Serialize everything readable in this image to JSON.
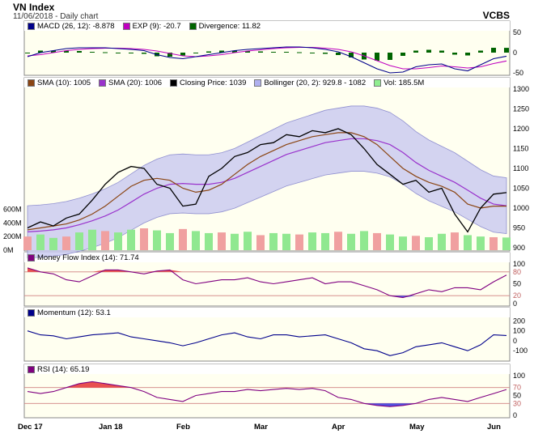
{
  "header": {
    "title": "VN Index",
    "subtitle": "11/06/2018 - Daily chart",
    "brand": "VCBS"
  },
  "x_axis_labels": [
    "Dec 17",
    "Jan 18",
    "Feb",
    "Mar",
    "Apr",
    "May",
    "Jun"
  ],
  "panels": {
    "macd": {
      "legend": [
        {
          "label": "MACD (26, 12): -8.878",
          "color": "#00008b"
        },
        {
          "label": "EXP (9): -20.7",
          "color": "#c000c0"
        },
        {
          "label": "Divergence: 11.82",
          "color": "#006400"
        }
      ],
      "ticks": [
        "50",
        "0",
        "-50"
      ]
    },
    "price": {
      "legend": [
        {
          "label": "SMA (10): 1005",
          "color": "#8b4513"
        },
        {
          "label": "SMA (20): 1006",
          "color": "#9932cc"
        },
        {
          "label": "Closing Price: 1039",
          "color": "#000000"
        },
        {
          "label": "Bollinger (20, 2): 929.8 - 1082",
          "color": "#b0b0f0"
        },
        {
          "label": "Vol: 185.5M",
          "color": "#90ee90"
        }
      ],
      "ticks": [
        "1300",
        "1250",
        "1200",
        "1150",
        "1100",
        "1050",
        "1000",
        "950",
        "900"
      ],
      "vol_ticks": [
        "600M",
        "400M",
        "200M",
        "0M"
      ]
    },
    "mfi": {
      "legend": [
        {
          "label": "Money Flow Index (14): 71.74",
          "color": "#800080"
        }
      ],
      "ticks": [
        "100",
        "80",
        "50",
        "20",
        "0"
      ]
    },
    "momentum": {
      "legend": [
        {
          "label": "Momentum (12): 53.1",
          "color": "#00008b"
        }
      ],
      "ticks": [
        "200",
        "100",
        "0",
        "-100"
      ]
    },
    "rsi": {
      "legend": [
        {
          "label": "RSI (14): 65.19",
          "color": "#800080"
        }
      ],
      "ticks": [
        "100",
        "70",
        "50",
        "30",
        "0"
      ]
    }
  },
  "chart_data": [
    {
      "type": "line",
      "title": "VN Index",
      "series": [
        {
          "name": "Closing Price",
          "values": [
            950,
            965,
            955,
            975,
            985,
            1020,
            1060,
            1090,
            1105,
            1100,
            1060,
            1050,
            1005,
            1010,
            1080,
            1100,
            1130,
            1140,
            1160,
            1165,
            1185,
            1180,
            1195,
            1190,
            1200,
            1185,
            1150,
            1110,
            1085,
            1060,
            1070,
            1040,
            1050,
            985,
            940,
            1000,
            1035,
            1039
          ]
        },
        {
          "name": "SMA (10)",
          "values": [
            945,
            950,
            955,
            960,
            970,
            985,
            1005,
            1030,
            1055,
            1070,
            1075,
            1070,
            1050,
            1040,
            1045,
            1060,
            1085,
            1110,
            1130,
            1145,
            1160,
            1170,
            1180,
            1185,
            1190,
            1190,
            1180,
            1160,
            1130,
            1100,
            1080,
            1065,
            1055,
            1040,
            1010,
            1000,
            1005,
            1005
          ]
        },
        {
          "name": "SMA (20)",
          "values": [
            940,
            942,
            945,
            950,
            958,
            968,
            980,
            995,
            1015,
            1035,
            1050,
            1060,
            1062,
            1060,
            1060,
            1065,
            1075,
            1090,
            1105,
            1120,
            1135,
            1145,
            1155,
            1165,
            1170,
            1175,
            1175,
            1170,
            1160,
            1140,
            1115,
            1095,
            1080,
            1065,
            1045,
            1025,
            1010,
            1006
          ]
        }
      ],
      "ylim": [
        900,
        1300
      ],
      "xlabel": "",
      "ylabel": ""
    },
    {
      "type": "bar",
      "title": "Vol",
      "values_m": [
        200,
        230,
        180,
        200,
        260,
        300,
        280,
        260,
        300,
        320,
        290,
        250,
        310,
        280,
        250,
        260,
        240,
        270,
        220,
        250,
        240,
        230,
        260,
        250,
        270,
        240,
        280,
        250,
        230,
        200,
        210,
        190,
        240,
        260,
        220,
        200,
        190,
        185.5
      ],
      "ylim": [
        0,
        700
      ]
    },
    {
      "type": "line",
      "title": "MACD",
      "series": [
        {
          "name": "MACD (26, 12)",
          "values": [
            -10,
            0,
            5,
            10,
            12,
            12,
            12,
            10,
            8,
            5,
            -5,
            -12,
            -15,
            -10,
            -5,
            0,
            5,
            8,
            10,
            12,
            14,
            14,
            12,
            8,
            2,
            -10,
            -25,
            -40,
            -50,
            -48,
            -35,
            -30,
            -28,
            -40,
            -45,
            -30,
            -15,
            -8.878
          ]
        },
        {
          "name": "EXP (9)",
          "values": [
            -8,
            -5,
            0,
            5,
            8,
            10,
            11,
            11,
            10,
            8,
            4,
            -2,
            -8,
            -10,
            -8,
            -5,
            0,
            4,
            7,
            10,
            12,
            13,
            13,
            11,
            8,
            2,
            -8,
            -20,
            -32,
            -40,
            -40,
            -37,
            -33,
            -35,
            -38,
            -35,
            -27,
            -20.7
          ]
        },
        {
          "name": "Divergence",
          "values": [
            -2,
            5,
            5,
            5,
            4,
            2,
            1,
            -1,
            -2,
            -3,
            -9,
            -10,
            -7,
            0,
            3,
            5,
            5,
            4,
            3,
            2,
            2,
            1,
            -1,
            -3,
            -6,
            -12,
            -17,
            -20,
            -18,
            -8,
            5,
            7,
            5,
            -5,
            -7,
            5,
            12,
            11.82
          ]
        }
      ],
      "ylim": [
        -50,
        50
      ]
    },
    {
      "type": "line",
      "title": "Money Flow Index",
      "series": [
        {
          "name": "Money Flow Index (14)",
          "values": [
            90,
            80,
            75,
            60,
            55,
            70,
            85,
            85,
            80,
            75,
            82,
            85,
            60,
            50,
            55,
            60,
            60,
            65,
            55,
            50,
            55,
            60,
            65,
            50,
            55,
            55,
            45,
            35,
            20,
            15,
            25,
            35,
            30,
            40,
            40,
            35,
            55,
            71.74
          ]
        }
      ],
      "ylim": [
        0,
        100
      ]
    },
    {
      "type": "line",
      "title": "Momentum",
      "series": [
        {
          "name": "Momentum (12)",
          "values": [
            100,
            60,
            50,
            20,
            40,
            60,
            70,
            80,
            40,
            20,
            0,
            -20,
            -50,
            -20,
            20,
            60,
            80,
            40,
            20,
            60,
            60,
            40,
            50,
            60,
            20,
            -20,
            -80,
            -100,
            -150,
            -120,
            -60,
            -40,
            -20,
            -60,
            -100,
            -40,
            60,
            53.1
          ]
        }
      ],
      "ylim": [
        -180,
        220
      ]
    },
    {
      "type": "line",
      "title": "RSI",
      "series": [
        {
          "name": "RSI (14)",
          "values": [
            60,
            55,
            60,
            70,
            80,
            85,
            80,
            75,
            70,
            60,
            45,
            40,
            35,
            50,
            55,
            60,
            60,
            65,
            62,
            65,
            68,
            65,
            68,
            62,
            45,
            40,
            30,
            25,
            22,
            25,
            30,
            40,
            45,
            40,
            35,
            45,
            55,
            65.19
          ]
        }
      ],
      "ylim": [
        0,
        100
      ]
    }
  ]
}
